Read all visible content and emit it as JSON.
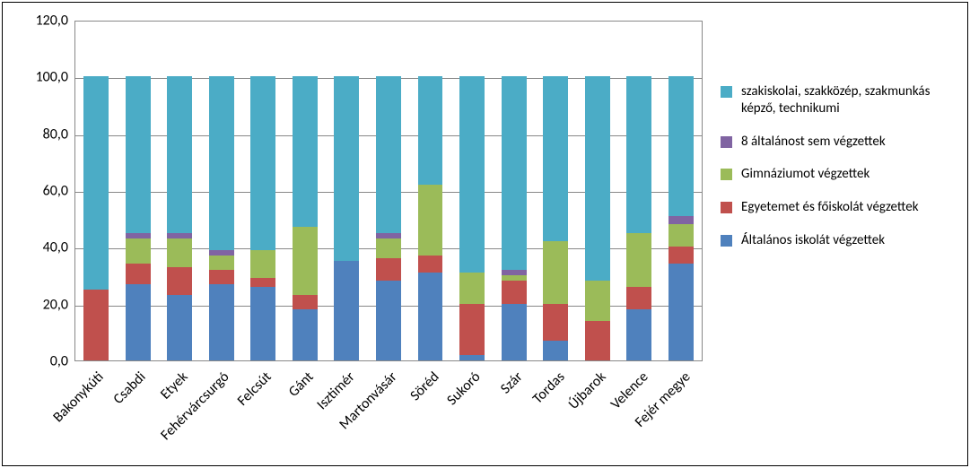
{
  "chart": {
    "type": "stacked-bar",
    "ylim": [
      0,
      120
    ],
    "ytick_step": 20,
    "yticks": [
      0,
      20,
      40,
      60,
      80,
      100,
      120
    ],
    "ytick_labels": [
      "0,0",
      "20,0",
      "40,0",
      "60,0",
      "80,0",
      "100,0",
      "120,0"
    ],
    "grid_color": "#888888",
    "background_color": "#ffffff",
    "axis_font_size": 16,
    "label_font_size": 16,
    "legend_font_size": 15,
    "frame_border_color": "#000000",
    "categories": [
      "Bakonykúti",
      "Csabdi",
      "Etyek",
      "Fehérvárcsurgó",
      "Felcsút",
      "Gánt",
      "Isztimér",
      "Martonvásár",
      "Söréd",
      "Sukoró",
      "Szár",
      "Tordas",
      "Újbarok",
      "Velence",
      "Fejér megye"
    ],
    "series": [
      {
        "key": "altalanos",
        "label": "Általános iskolát végzettek",
        "color": "#4f81bd"
      },
      {
        "key": "egyetem",
        "label": "Egyetemet és főiskolát végzettek",
        "color": "#c0504d"
      },
      {
        "key": "gimnazium",
        "label": "Gimnáziumot végzettek",
        "color": "#9bbb59"
      },
      {
        "key": "nyolc_alatt",
        "label": "8 általánost sem végzettek",
        "color": "#8064a2"
      },
      {
        "key": "szakiskola",
        "label": "szakiskolai, szakközép, szakmunkás képző, technikumi",
        "color": "#4bacc6"
      }
    ],
    "legend_order": [
      "szakiskola",
      "nyolc_alatt",
      "gimnazium",
      "egyetem",
      "altalanos"
    ],
    "data": [
      {
        "altalanos": 0.0,
        "egyetem": 25.0,
        "gimnazium": 0.0,
        "nyolc_alatt": 0.0,
        "szakiskola": 75.0
      },
      {
        "altalanos": 27.0,
        "egyetem": 7.0,
        "gimnazium": 9.0,
        "nyolc_alatt": 2.0,
        "szakiskola": 55.0
      },
      {
        "altalanos": 23.0,
        "egyetem": 10.0,
        "gimnazium": 10.0,
        "nyolc_alatt": 2.0,
        "szakiskola": 55.0
      },
      {
        "altalanos": 27.0,
        "egyetem": 5.0,
        "gimnazium": 5.0,
        "nyolc_alatt": 2.0,
        "szakiskola": 61.0
      },
      {
        "altalanos": 26.0,
        "egyetem": 3.0,
        "gimnazium": 10.0,
        "nyolc_alatt": 0.0,
        "szakiskola": 61.0
      },
      {
        "altalanos": 18.0,
        "egyetem": 5.0,
        "gimnazium": 24.0,
        "nyolc_alatt": 0.0,
        "szakiskola": 53.0
      },
      {
        "altalanos": 35.0,
        "egyetem": 0.0,
        "gimnazium": 0.0,
        "nyolc_alatt": 0.0,
        "szakiskola": 65.0
      },
      {
        "altalanos": 28.0,
        "egyetem": 8.0,
        "gimnazium": 7.0,
        "nyolc_alatt": 2.0,
        "szakiskola": 55.0
      },
      {
        "altalanos": 31.0,
        "egyetem": 6.0,
        "gimnazium": 25.0,
        "nyolc_alatt": 0.0,
        "szakiskola": 38.0
      },
      {
        "altalanos": 2.0,
        "egyetem": 18.0,
        "gimnazium": 11.0,
        "nyolc_alatt": 0.0,
        "szakiskola": 69.0
      },
      {
        "altalanos": 20.0,
        "egyetem": 8.0,
        "gimnazium": 2.0,
        "nyolc_alatt": 2.0,
        "szakiskola": 68.0
      },
      {
        "altalanos": 7.0,
        "egyetem": 13.0,
        "gimnazium": 22.0,
        "nyolc_alatt": 0.0,
        "szakiskola": 58.0
      },
      {
        "altalanos": 0.0,
        "egyetem": 14.0,
        "gimnazium": 14.0,
        "nyolc_alatt": 0.0,
        "szakiskola": 72.0
      },
      {
        "altalanos": 18.0,
        "egyetem": 8.0,
        "gimnazium": 19.0,
        "nyolc_alatt": 0.0,
        "szakiskola": 55.0
      },
      {
        "altalanos": 34.0,
        "egyetem": 6.0,
        "gimnazium": 8.0,
        "nyolc_alatt": 3.0,
        "szakiskola": 49.0
      }
    ]
  }
}
